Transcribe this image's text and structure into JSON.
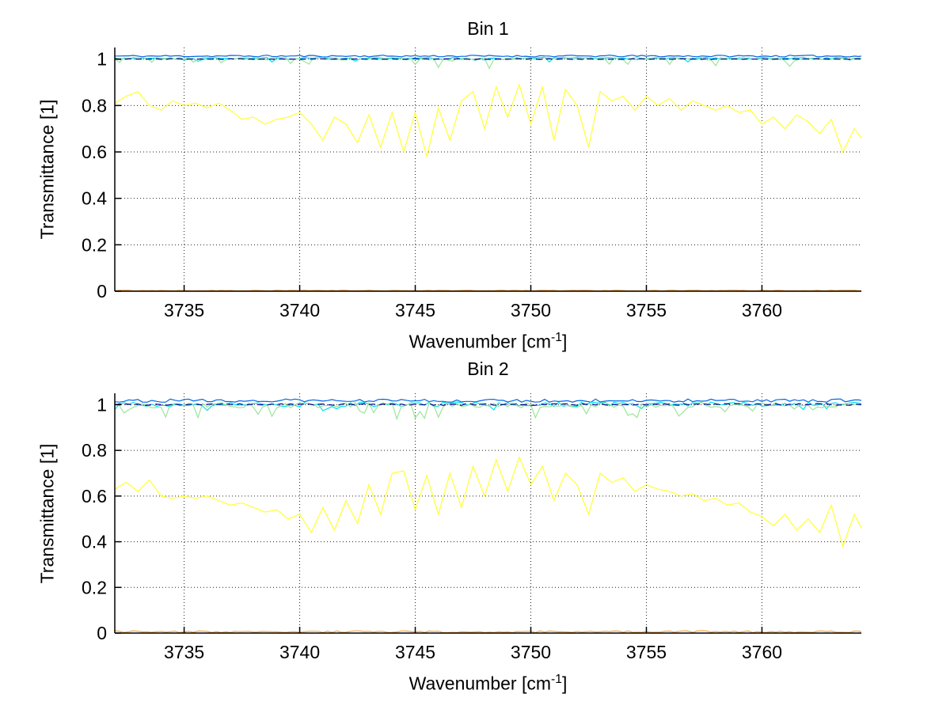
{
  "figure": {
    "background": "#FFFFFF"
  },
  "chart_data": [
    {
      "type": "line",
      "title": "Bin 1",
      "xlabel_main": "Wavenumber [cm",
      "xlabel_sup": "-1",
      "xlabel_close": "]",
      "ylabel": "Transmittance [1]",
      "xlim": [
        3732,
        3764.3
      ],
      "ylim": [
        0,
        1.05
      ],
      "xticks": [
        3735,
        3740,
        3745,
        3750,
        3755,
        3760
      ],
      "xtick_labels": [
        "3735",
        "3740",
        "3745",
        "3750",
        "3755",
        "3760"
      ],
      "yticks": [
        0,
        0.2,
        0.4,
        0.6,
        0.8,
        1
      ],
      "ytick_labels": [
        "0",
        "0.2",
        "0.4",
        "0.6",
        "0.8",
        "1"
      ],
      "grid": "dotted",
      "grid_color": "#222222",
      "axis_color": "#000000",
      "legend": null,
      "series": [
        {
          "name": "orange-near-zero",
          "color": "#F2A33C",
          "style": "solid",
          "gen": {
            "baseline": 0.003,
            "jitter": 0.0015,
            "dip_prob": 0,
            "dip_amp": 0,
            "seed": 55,
            "step": 0.2
          }
        },
        {
          "name": "yellow-spectrum",
          "color": "#FFFF33",
          "style": "solid",
          "x_start": 3732,
          "x_step": 0.5,
          "values": [
            0.81,
            0.84,
            0.86,
            0.8,
            0.78,
            0.82,
            0.8,
            0.81,
            0.79,
            0.81,
            0.78,
            0.74,
            0.75,
            0.72,
            0.74,
            0.75,
            0.77,
            0.72,
            0.65,
            0.75,
            0.72,
            0.64,
            0.76,
            0.62,
            0.77,
            0.6,
            0.77,
            0.58,
            0.79,
            0.65,
            0.82,
            0.86,
            0.7,
            0.88,
            0.75,
            0.89,
            0.72,
            0.88,
            0.65,
            0.87,
            0.8,
            0.62,
            0.86,
            0.82,
            0.84,
            0.78,
            0.84,
            0.8,
            0.83,
            0.78,
            0.82,
            0.8,
            0.78,
            0.8,
            0.77,
            0.78,
            0.72,
            0.75,
            0.7,
            0.76,
            0.73,
            0.68,
            0.74,
            0.6,
            0.7,
            0.66
          ]
        },
        {
          "name": "blue-near-one",
          "color": "#0066E6",
          "style": "solid",
          "gen": {
            "baseline": 1.013,
            "jitter": 0.004,
            "dip_prob": 0,
            "dip_amp": 0,
            "seed": 11,
            "step": 0.2
          }
        },
        {
          "name": "cyan-near-one",
          "color": "#00E0F0",
          "style": "solid",
          "gen": {
            "baseline": 1.003,
            "jitter": 0.005,
            "dip_prob": 0.06,
            "dip_amp": 0.02,
            "seed": 22,
            "step": 0.2
          }
        },
        {
          "name": "green-near-one",
          "color": "#99E699",
          "style": "solid",
          "gen": {
            "baseline": 1.002,
            "jitter": 0.006,
            "dip_prob": 0.13,
            "dip_amp": 0.04,
            "seed": 33,
            "step": 0.2
          }
        },
        {
          "name": "navy-dashed-one",
          "color": "#00008B",
          "style": "dashed",
          "gen": {
            "baseline": 1.0,
            "jitter": 0.0015,
            "dip_prob": 0,
            "dip_amp": 0,
            "seed": 44,
            "step": 0.2
          }
        }
      ]
    },
    {
      "type": "line",
      "title": "Bin 2",
      "xlabel_main": "Wavenumber [cm",
      "xlabel_sup": "-1",
      "xlabel_close": "]",
      "ylabel": "Transmittance [1]",
      "xlim": [
        3732,
        3764.3
      ],
      "ylim": [
        0,
        1.05
      ],
      "xticks": [
        3735,
        3740,
        3745,
        3750,
        3755,
        3760
      ],
      "xtick_labels": [
        "3735",
        "3740",
        "3745",
        "3750",
        "3755",
        "3760"
      ],
      "yticks": [
        0,
        0.2,
        0.4,
        0.6,
        0.8,
        1
      ],
      "ytick_labels": [
        "0",
        "0.2",
        "0.4",
        "0.6",
        "0.8",
        "1"
      ],
      "grid": "dotted",
      "grid_color": "#222222",
      "axis_color": "#000000",
      "legend": null,
      "series": [
        {
          "name": "orange-near-zero",
          "color": "#F2A33C",
          "style": "solid",
          "gen": {
            "baseline": 0.006,
            "jitter": 0.004,
            "dip_prob": 0,
            "dip_amp": 0,
            "seed": 111,
            "step": 0.2
          }
        },
        {
          "name": "yellow-spectrum",
          "color": "#FFFF33",
          "style": "solid",
          "x_start": 3732,
          "x_step": 0.5,
          "values": [
            0.63,
            0.66,
            0.62,
            0.67,
            0.6,
            0.59,
            0.6,
            0.59,
            0.6,
            0.58,
            0.56,
            0.57,
            0.55,
            0.53,
            0.54,
            0.5,
            0.52,
            0.44,
            0.55,
            0.45,
            0.58,
            0.48,
            0.65,
            0.52,
            0.7,
            0.71,
            0.54,
            0.69,
            0.52,
            0.7,
            0.55,
            0.73,
            0.6,
            0.76,
            0.62,
            0.77,
            0.65,
            0.73,
            0.58,
            0.7,
            0.65,
            0.52,
            0.7,
            0.66,
            0.68,
            0.62,
            0.65,
            0.63,
            0.62,
            0.6,
            0.61,
            0.58,
            0.59,
            0.56,
            0.57,
            0.53,
            0.51,
            0.47,
            0.52,
            0.45,
            0.5,
            0.44,
            0.56,
            0.38,
            0.52,
            0.46
          ]
        },
        {
          "name": "blue-near-one",
          "color": "#0066E6",
          "style": "solid",
          "gen": {
            "baseline": 1.018,
            "jitter": 0.007,
            "dip_prob": 0,
            "dip_amp": 0,
            "seed": 66,
            "step": 0.2
          }
        },
        {
          "name": "cyan-near-one",
          "color": "#00E0F0",
          "style": "solid",
          "gen": {
            "baseline": 1.002,
            "jitter": 0.01,
            "dip_prob": 0.1,
            "dip_amp": 0.03,
            "seed": 77,
            "step": 0.2
          }
        },
        {
          "name": "green-near-one",
          "color": "#99E699",
          "style": "solid",
          "gen": {
            "baseline": 0.998,
            "jitter": 0.012,
            "dip_prob": 0.22,
            "dip_amp": 0.06,
            "seed": 88,
            "step": 0.2
          }
        },
        {
          "name": "navy-dashed-one",
          "color": "#00008B",
          "style": "dashed",
          "gen": {
            "baseline": 1.001,
            "jitter": 0.004,
            "dip_prob": 0,
            "dip_amp": 0,
            "seed": 99,
            "step": 0.2
          }
        }
      ]
    }
  ]
}
